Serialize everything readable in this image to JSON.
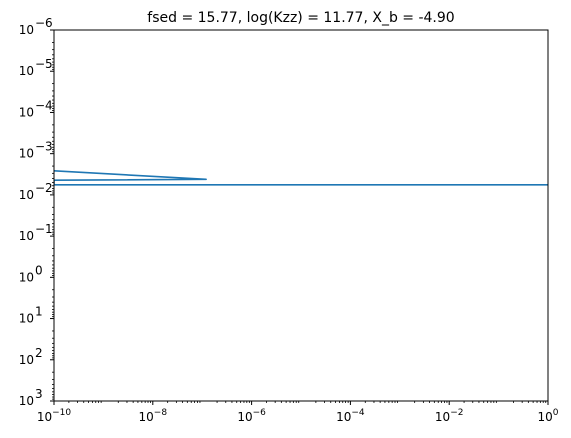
{
  "chart_data": {
    "type": "line",
    "title": "fsed = 15.77, log(Kzz) = 11.77, X_b = -4.90",
    "xlabel": "",
    "ylabel": "",
    "x_scale": "log",
    "y_scale": "log",
    "y_inverted": true,
    "xlim": [
      1e-10,
      1
    ],
    "ylim": [
      1000,
      1e-06
    ],
    "grid": false,
    "x_ticks": [
      {
        "value": 1e-10,
        "base": "10",
        "exp": "−10"
      },
      {
        "value": 1e-08,
        "base": "10",
        "exp": "−8"
      },
      {
        "value": 1e-06,
        "base": "10",
        "exp": "−6"
      },
      {
        "value": 0.0001,
        "base": "10",
        "exp": "−4"
      },
      {
        "value": 0.01,
        "base": "10",
        "exp": "−2"
      },
      {
        "value": 1,
        "base": "10",
        "exp": "0"
      }
    ],
    "y_ticks": [
      {
        "value": 1e-06,
        "base": "10",
        "exp": "−6"
      },
      {
        "value": 1e-05,
        "base": "10",
        "exp": "−5"
      },
      {
        "value": 0.0001,
        "base": "10",
        "exp": "−4"
      },
      {
        "value": 0.001,
        "base": "10",
        "exp": "−3"
      },
      {
        "value": 0.01,
        "base": "10",
        "exp": "−2"
      },
      {
        "value": 0.1,
        "base": "10",
        "exp": "−1"
      },
      {
        "value": 1,
        "base": "10",
        "exp": "0"
      },
      {
        "value": 10,
        "base": "10",
        "exp": "1"
      },
      {
        "value": 100,
        "base": "10",
        "exp": "2"
      },
      {
        "value": 1000,
        "base": "10",
        "exp": "3"
      }
    ],
    "series": [
      {
        "color": "#1f77b4",
        "points": [
          [
            1e-10,
            0.0026
          ],
          [
            1.2e-07,
            0.0042
          ],
          [
            1e-10,
            0.0044
          ],
          [
            1e-10,
            0.0057
          ],
          [
            1,
            0.0057
          ]
        ]
      }
    ]
  }
}
